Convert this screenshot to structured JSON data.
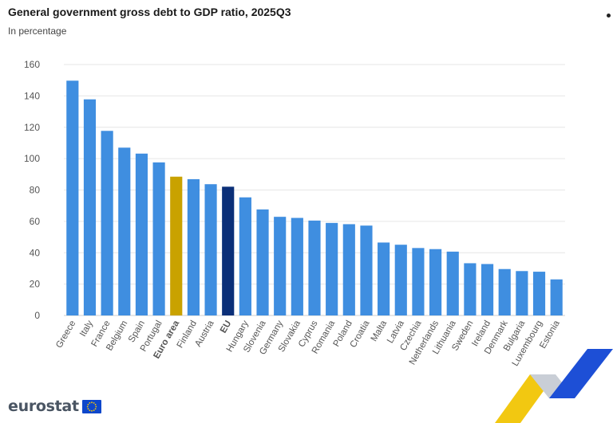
{
  "header": {
    "title": "General government gross debt to GDP ratio, 2025Q3",
    "subtitle": "In percentage"
  },
  "branding": {
    "logo_text": "eurostat",
    "logo_icon": "eu-flag-icon"
  },
  "colors": {
    "bar_default": "#3f8ee0",
    "bar_euro_area": "#c9a200",
    "bar_eu": "#0b2f78",
    "grid": "#e6e6e6",
    "axis_text": "#555555"
  },
  "chart_data": {
    "type": "bar",
    "title": "General government gross debt to GDP ratio, 2025Q3",
    "subtitle": "In percentage",
    "xlabel": "",
    "ylabel": "",
    "ylim": [
      0,
      160
    ],
    "yticks": [
      0,
      20,
      40,
      60,
      80,
      100,
      120,
      140,
      160
    ],
    "grid": true,
    "legend": "none",
    "categories": [
      "Greece",
      "Italy",
      "France",
      "Belgium",
      "Spain",
      "Portugal",
      "Euro area",
      "Finland",
      "Austria",
      "EU",
      "Hungary",
      "Slovenia",
      "Germany",
      "Slovakia",
      "Cyprus",
      "Romania",
      "Poland",
      "Croatia",
      "Malta",
      "Latvia",
      "Czechia",
      "Netherlands",
      "Lithuania",
      "Sweden",
      "Ireland",
      "Denmark",
      "Bulgaria",
      "Luxembourg",
      "Estonia"
    ],
    "values": [
      149.7,
      137.8,
      117.7,
      107.0,
      103.2,
      97.6,
      88.5,
      86.9,
      83.7,
      82.1,
      75.3,
      67.6,
      62.9,
      62.2,
      60.5,
      59.0,
      58.2,
      57.3,
      46.5,
      45.1,
      43.0,
      42.3,
      40.7,
      33.3,
      32.8,
      29.6,
      28.3,
      27.9,
      23.0
    ],
    "highlight": {
      "Euro area": "bar_euro_area",
      "EU": "bar_eu"
    },
    "bold_labels": [
      "Euro area",
      "EU"
    ]
  }
}
